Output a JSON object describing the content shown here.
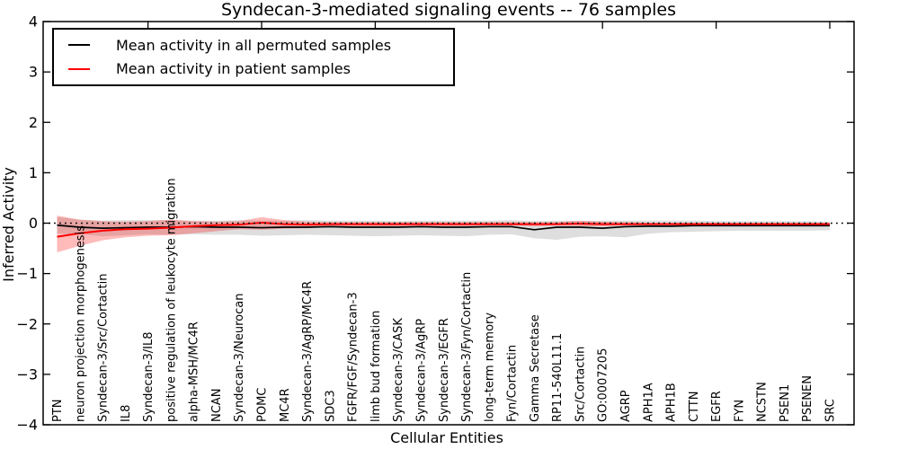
{
  "chart_data": {
    "type": "line",
    "title": "Syndecan-3-mediated signaling events -- 76 samples",
    "xlabel": "Cellular Entities",
    "ylabel": "Inferred Activity",
    "ylim": [
      -4,
      4
    ],
    "yticks": [
      -4,
      -3,
      -2,
      -1,
      0,
      1,
      2,
      3,
      4
    ],
    "ytick_labels": [
      "−4",
      "−3",
      "−2",
      "−1",
      "0",
      "1",
      "2",
      "3",
      "4"
    ],
    "top_tick_indices": [
      4,
      9,
      14,
      19,
      24,
      29,
      34
    ],
    "grid": false,
    "legend_position": "upper left",
    "zero_line": {
      "value": 0,
      "style": "dotted",
      "color": "#000000"
    },
    "categories": [
      "PTN",
      "neuron projection morphogenesis",
      "Syndecan-3/Src/Cortactin",
      "IL8",
      "Syndecan-3/IL8",
      "positive regulation of leukocyte migration",
      "alpha-MSH/MC4R",
      "NCAN",
      "Syndecan-3/Neurocan",
      "POMC",
      "MC4R",
      "Syndecan-3/AgRP/MC4R",
      "SDC3",
      "FGFR/FGF/Syndecan-3",
      "limb bud formation",
      "Syndecan-3/CASK",
      "Syndecan-3/AgRP",
      "Syndecan-3/EGFR",
      "Syndecan-3/Fyn/Cortactin",
      "long-term memory",
      "Fyn/Cortactin",
      "Gamma Secretase",
      "RP11-540L11.1",
      "Src/Cortactin",
      "GO:0007205",
      "AGRP",
      "APH1A",
      "APH1B",
      "CTTN",
      "EGFR",
      "FYN",
      "NCSTN",
      "PSEN1",
      "PSENEN",
      "SRC"
    ],
    "series": [
      {
        "name": "Mean activity in all permuted samples",
        "color": "#000000",
        "band_color": "rgba(0,0,0,0.13)",
        "line_width": 1.7,
        "values": [
          -0.04,
          -0.08,
          -0.1,
          -0.09,
          -0.08,
          -0.08,
          -0.07,
          -0.08,
          -0.08,
          -0.09,
          -0.08,
          -0.08,
          -0.07,
          -0.08,
          -0.08,
          -0.08,
          -0.07,
          -0.08,
          -0.08,
          -0.07,
          -0.07,
          -0.13,
          -0.08,
          -0.08,
          -0.1,
          -0.07,
          -0.06,
          -0.06,
          -0.05,
          -0.05,
          -0.05,
          -0.05,
          -0.05,
          -0.05,
          -0.05
        ],
        "band_upper": [
          0.12,
          0.07,
          0.05,
          0.06,
          0.06,
          0.06,
          0.05,
          0.05,
          0.06,
          0.05,
          0.05,
          0.06,
          0.05,
          0.05,
          0.05,
          0.04,
          0.05,
          0.05,
          0.05,
          0.05,
          0.06,
          0.04,
          0.05,
          0.04,
          0.05,
          0.05,
          0.05,
          0.05,
          0.05,
          0.04,
          0.04,
          0.04,
          0.04,
          0.04,
          0.03
        ],
        "band_lower": [
          -0.2,
          -0.22,
          -0.26,
          -0.24,
          -0.22,
          -0.23,
          -0.22,
          -0.23,
          -0.23,
          -0.25,
          -0.24,
          -0.23,
          -0.24,
          -0.25,
          -0.26,
          -0.25,
          -0.24,
          -0.25,
          -0.26,
          -0.23,
          -0.22,
          -0.3,
          -0.33,
          -0.27,
          -0.26,
          -0.28,
          -0.21,
          -0.18,
          -0.17,
          -0.16,
          -0.15,
          -0.15,
          -0.15,
          -0.15,
          -0.14
        ]
      },
      {
        "name": "Mean activity in patient samples",
        "color": "#ff0000",
        "band_color": "rgba(255,0,0,0.27)",
        "line_width": 2,
        "values": [
          -0.27,
          -0.2,
          -0.15,
          -0.12,
          -0.11,
          -0.09,
          -0.06,
          -0.04,
          -0.03,
          0.01,
          -0.02,
          -0.03,
          -0.02,
          -0.02,
          -0.02,
          -0.02,
          -0.02,
          -0.02,
          -0.02,
          -0.02,
          -0.02,
          -0.02,
          -0.02,
          -0.01,
          -0.02,
          -0.02,
          -0.02,
          -0.02,
          -0.02,
          -0.02,
          -0.02,
          -0.02,
          -0.02,
          -0.02,
          -0.02
        ],
        "band_upper": [
          0.15,
          0.07,
          0.04,
          0.03,
          0.04,
          0.07,
          0.04,
          0.03,
          0.04,
          0.12,
          0.06,
          0.03,
          0.02,
          0.02,
          0.02,
          0.02,
          0.02,
          0.02,
          0.02,
          0.02,
          0.02,
          0.02,
          0.02,
          0.05,
          0.03,
          0.02,
          0.01,
          0.01,
          0.01,
          0.01,
          0.01,
          0.01,
          0.01,
          0.01,
          0.01
        ],
        "band_lower": [
          -0.58,
          -0.45,
          -0.34,
          -0.28,
          -0.25,
          -0.24,
          -0.2,
          -0.16,
          -0.12,
          -0.13,
          -0.11,
          -0.1,
          -0.08,
          -0.07,
          -0.07,
          -0.06,
          -0.06,
          -0.06,
          -0.06,
          -0.05,
          -0.05,
          -0.06,
          -0.05,
          -0.06,
          -0.06,
          -0.05,
          -0.04,
          -0.04,
          -0.04,
          -0.04,
          -0.04,
          -0.03,
          -0.03,
          -0.03,
          -0.03
        ]
      }
    ]
  }
}
